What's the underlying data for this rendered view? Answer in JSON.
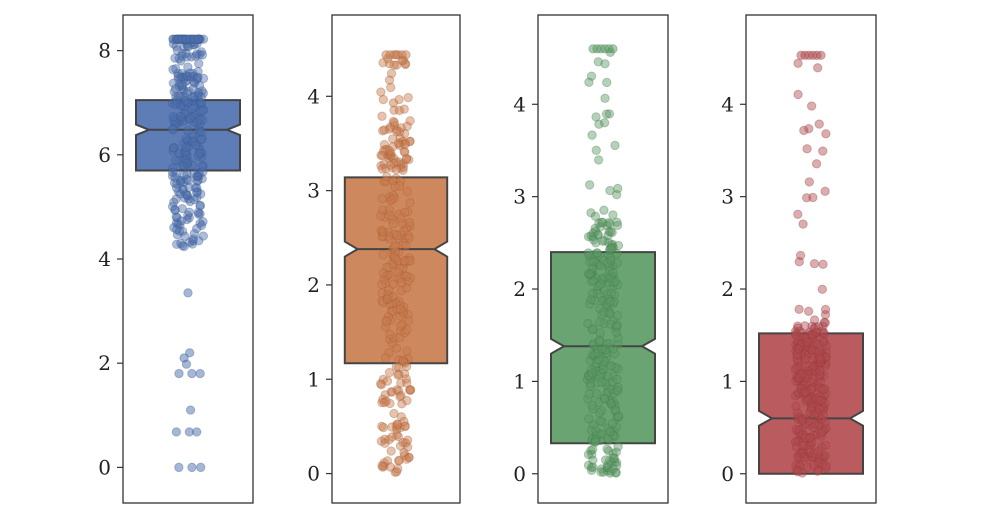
{
  "chart_data": [
    {
      "type": "boxplot",
      "style": "notched box with jittered strip points",
      "color": "#4C6FAE",
      "ylim": [
        -0.3,
        8.3
      ],
      "yticks": [
        0,
        2,
        4,
        6,
        8
      ],
      "xlabel": "",
      "ylabel": "",
      "title": "",
      "box": {
        "q1": 5.7,
        "median": 6.48,
        "q3": 7.05,
        "notch_low": 6.38,
        "notch_high": 6.58
      },
      "points": {
        "min": 0.0,
        "max": 8.22,
        "dense_low": 4.2,
        "dense_high": 8.22,
        "outliers": [
          3.35,
          2.2,
          2.1,
          1.98,
          1.8,
          1.1,
          0.68,
          0.0
        ]
      }
    },
    {
      "type": "boxplot",
      "style": "notched box with jittered strip points",
      "color": "#C97B4B",
      "ylim": [
        -0.1,
        4.65
      ],
      "yticks": [
        0,
        1,
        2,
        3,
        4
      ],
      "xlabel": "",
      "ylabel": "",
      "title": "",
      "box": {
        "q1": 1.17,
        "median": 2.38,
        "q3": 3.14,
        "notch_low": 2.3,
        "notch_high": 2.46
      },
      "points": {
        "min": 0.0,
        "max": 4.44,
        "dense_low": 0.0,
        "dense_high": 3.62,
        "outliers": [
          3.72,
          3.85,
          3.93,
          4.33,
          4.44
        ]
      }
    },
    {
      "type": "boxplot",
      "style": "notched box with jittered strip points",
      "color": "#5A9A63",
      "ylim": [
        -0.1,
        4.75
      ],
      "yticks": [
        0,
        1,
        2,
        3,
        4
      ],
      "xlabel": "",
      "ylabel": "",
      "title": "",
      "box": {
        "q1": 0.33,
        "median": 1.38,
        "q3": 2.4,
        "notch_low": 1.3,
        "notch_high": 1.46
      },
      "points": {
        "min": 0.0,
        "max": 4.6,
        "dense_low": 0.0,
        "dense_high": 2.7,
        "outliers": []
      }
    },
    {
      "type": "boxplot",
      "style": "notched box with jittered strip points",
      "color": "#B24A4E",
      "ylim": [
        -0.1,
        4.75
      ],
      "yticks": [
        0,
        1,
        2,
        3,
        4
      ],
      "xlabel": "",
      "ylabel": "",
      "title": "",
      "box": {
        "q1": 0.0,
        "median": 0.6,
        "q3": 1.52,
        "notch_low": 0.52,
        "notch_high": 0.68
      },
      "points": {
        "min": 0.0,
        "max": 4.53,
        "dense_low": 0.0,
        "dense_high": 1.6,
        "outliers": []
      }
    }
  ]
}
